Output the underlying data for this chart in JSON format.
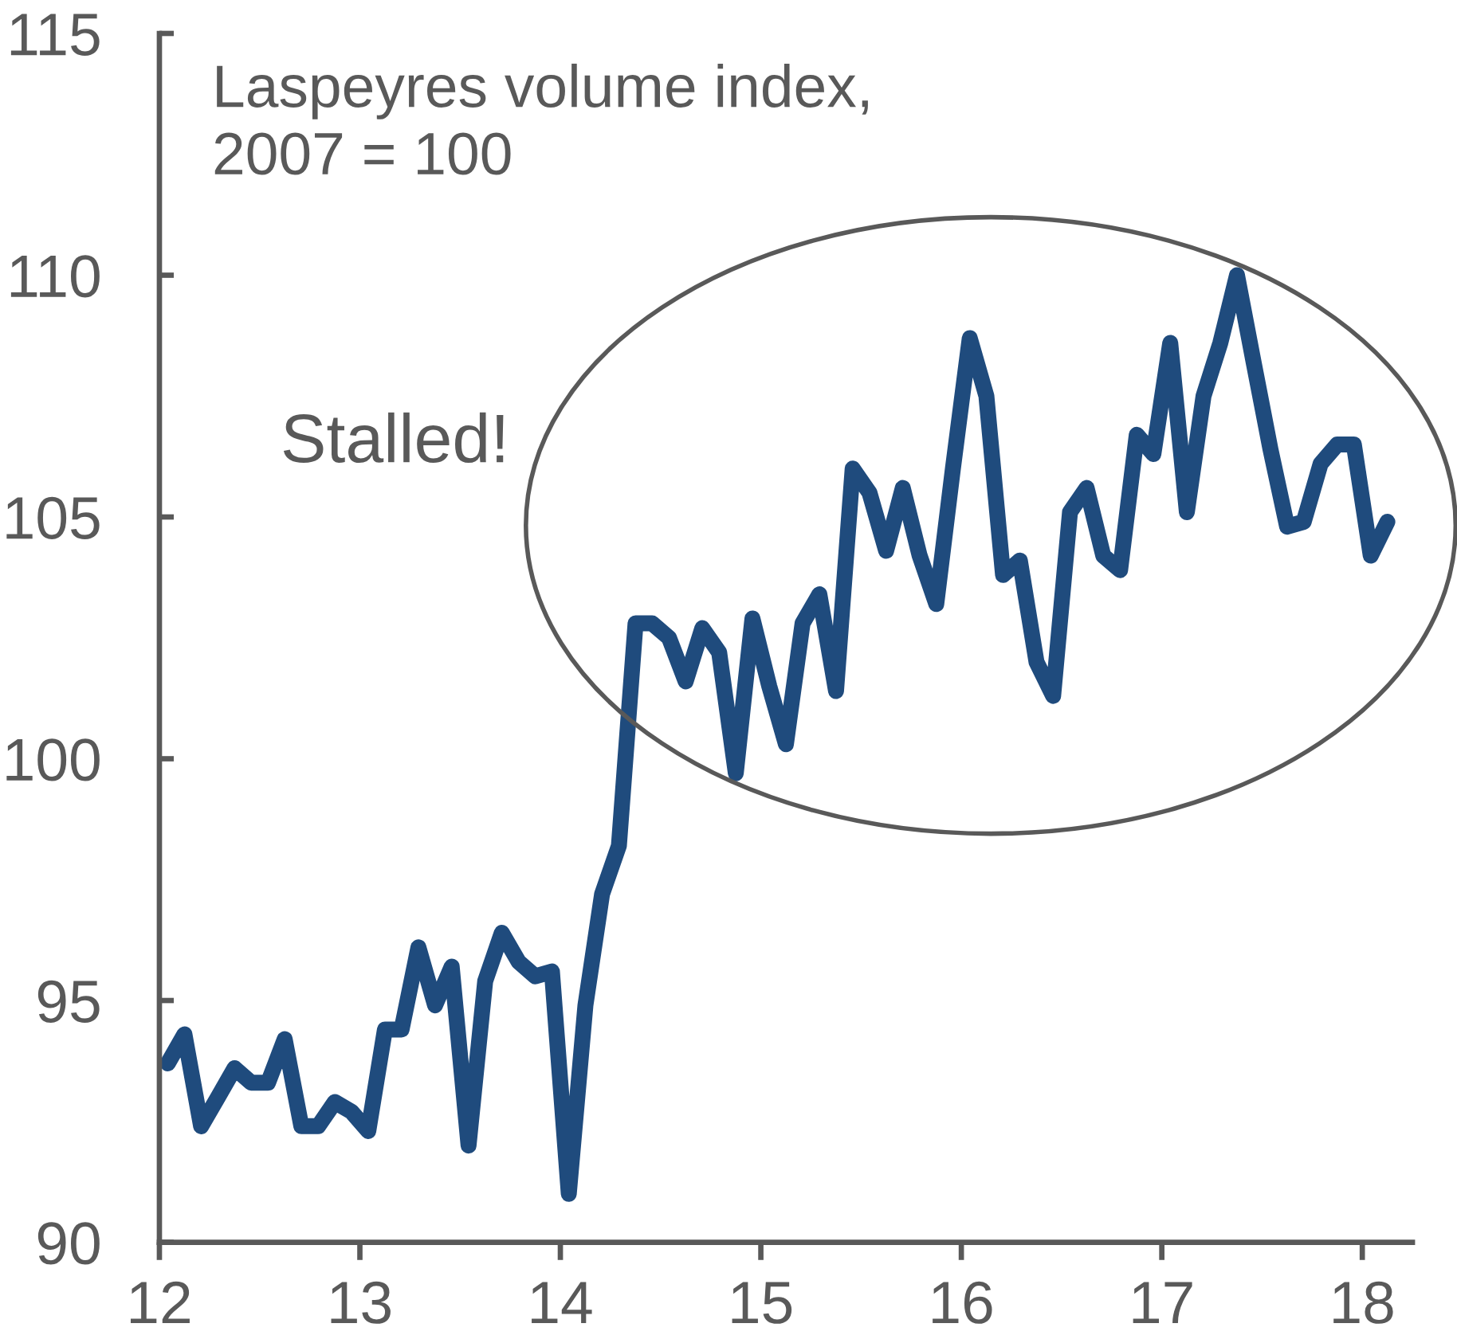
{
  "chart_data": {
    "type": "line",
    "ylabel": "Laspeyres volume index,\n2007 = 100",
    "annotations": [
      "Stalled!"
    ],
    "x": [
      12.042,
      12.125,
      12.208,
      12.292,
      12.375,
      12.458,
      12.542,
      12.625,
      12.708,
      12.792,
      12.875,
      12.958,
      13.042,
      13.125,
      13.208,
      13.292,
      13.375,
      13.458,
      13.542,
      13.625,
      13.708,
      13.792,
      13.875,
      13.958,
      14.042,
      14.125,
      14.208,
      14.292,
      14.375,
      14.458,
      14.542,
      14.625,
      14.708,
      14.792,
      14.875,
      14.958,
      15.042,
      15.125,
      15.208,
      15.292,
      15.375,
      15.458,
      15.542,
      15.625,
      15.708,
      15.792,
      15.875,
      15.958,
      16.042,
      16.125,
      16.208,
      16.292,
      16.375,
      16.458,
      16.542,
      16.625,
      16.708,
      16.792,
      16.875,
      16.958,
      17.042,
      17.125,
      17.208,
      17.292,
      17.375,
      17.458,
      17.542,
      17.625,
      17.708,
      17.792,
      17.875,
      17.958,
      18.042,
      18.125
    ],
    "series": [
      {
        "color": "#1f4b7d",
        "values": [
          93.7,
          94.3,
          92.4,
          93.0,
          93.6,
          93.3,
          93.3,
          94.2,
          92.4,
          92.4,
          92.9,
          92.7,
          92.3,
          94.4,
          94.4,
          96.1,
          94.9,
          95.7,
          92.0,
          95.4,
          96.4,
          95.8,
          95.5,
          95.6,
          91.0,
          94.9,
          97.2,
          98.2,
          102.8,
          102.8,
          102.5,
          101.6,
          102.7,
          102.2,
          99.7,
          102.9,
          101.5,
          100.3,
          102.8,
          103.4,
          101.4,
          106.0,
          105.5,
          104.3,
          105.6,
          104.2,
          103.2,
          106.0,
          108.7,
          107.5,
          103.8,
          104.1,
          102.0,
          101.3,
          105.1,
          105.6,
          104.2,
          103.9,
          106.7,
          106.3,
          108.6,
          105.1,
          107.5,
          108.6,
          110.0,
          108.2,
          106.4,
          104.8,
          104.9,
          106.1,
          106.5,
          106.5,
          104.2,
          104.9
        ]
      }
    ],
    "xlim": [
      12,
      18.25
    ],
    "xticks": [
      12,
      13,
      14,
      15,
      16,
      17,
      18
    ],
    "ylim": [
      90,
      115
    ],
    "yticks": [
      90,
      95,
      100,
      105,
      110,
      115
    ],
    "grid": false,
    "line_style": "solid"
  }
}
